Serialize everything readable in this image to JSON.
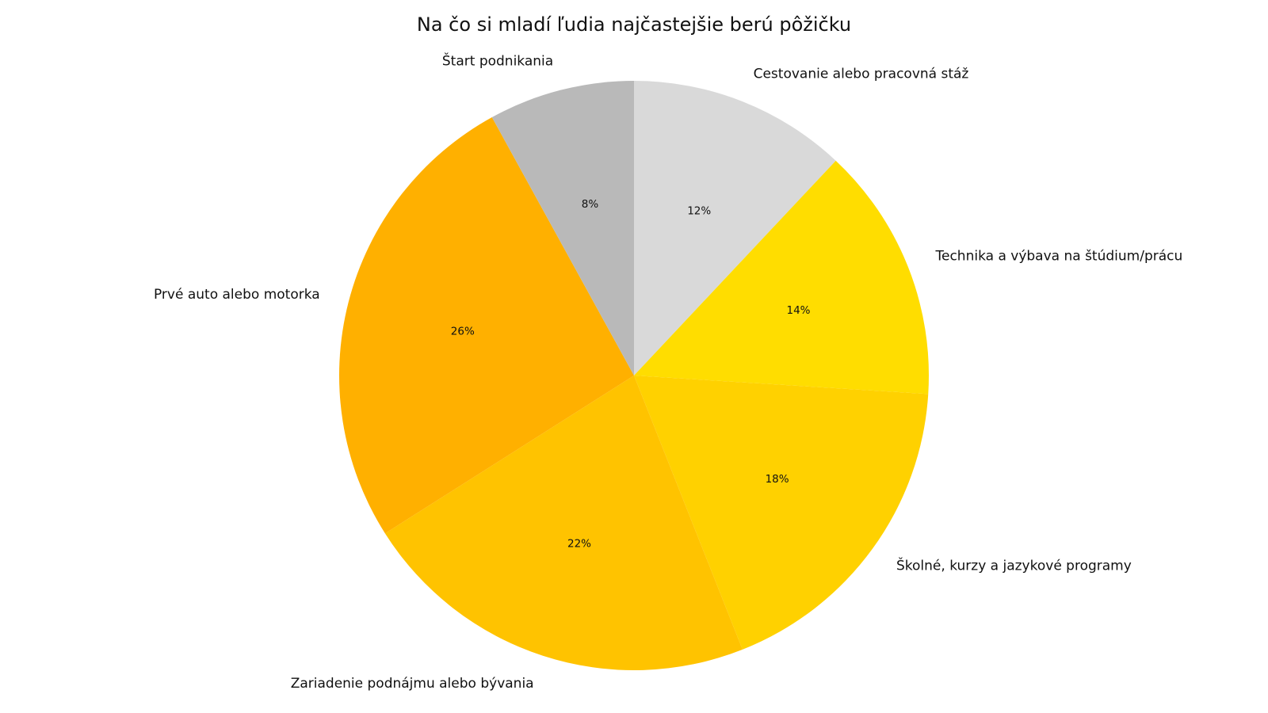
{
  "chart_data": {
    "type": "pie",
    "title": "Na čo si mladí ľudia najčastejšie berú pôžičku",
    "start_angle_deg": 90,
    "direction": "clockwise",
    "slices": [
      {
        "label": "Cestovanie alebo pracovná stáž",
        "value": 12,
        "pct_label": "12%",
        "color": "#d9d9d9"
      },
      {
        "label": "Technika a výbava na štúdium/prácu",
        "value": 14,
        "pct_label": "14%",
        "color": "#ffdd00"
      },
      {
        "label": "Školné, kurzy a jazykové programy",
        "value": 18,
        "pct_label": "18%",
        "color": "#ffd100"
      },
      {
        "label": "Zariadenie podnájmu alebo bývania",
        "value": 22,
        "pct_label": "22%",
        "color": "#ffc300"
      },
      {
        "label": "Prvé auto alebo motorka",
        "value": 26,
        "pct_label": "26%",
        "color": "#ffb000"
      },
      {
        "label": "Štart podnikania",
        "value": 8,
        "pct_label": "8%",
        "color": "#b9b9b9"
      }
    ]
  }
}
